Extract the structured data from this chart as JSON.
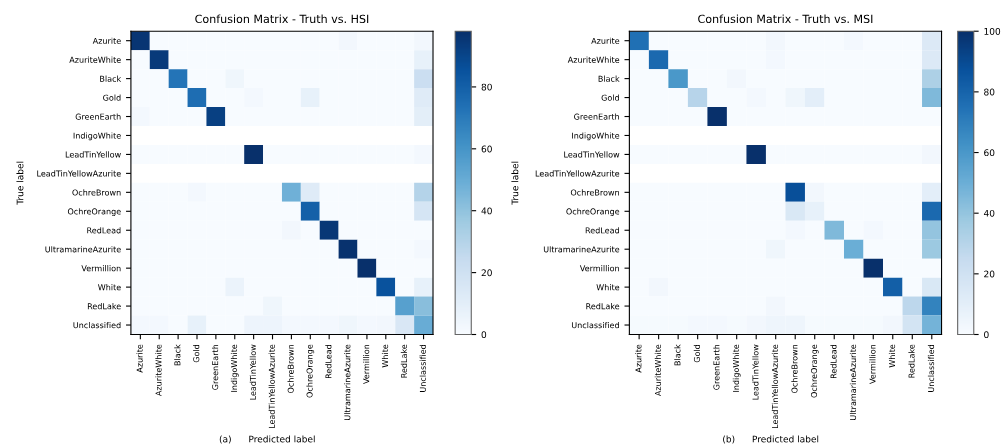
{
  "chart_data": [
    {
      "type": "heatmap",
      "title": "Confusion Matrix - Truth vs. HSI",
      "xlabel": "Predicted label",
      "ylabel": "True label",
      "annotations": [
        "(a)"
      ],
      "categories": [
        "Azurite",
        "AzuriteWhite",
        "Black",
        "Gold",
        "GreenEarth",
        "IndigoWhite",
        "LeadTinYellow",
        "LeadTinYellowAzurite",
        "OchreBrown",
        "OchreOrange",
        "RedLead",
        "UltramarineAzurite",
        "Vermillion",
        "White",
        "RedLake",
        "Unclassified"
      ],
      "y_categories": [
        "Azurite",
        "AzuriteWhite",
        "Black",
        "Gold",
        "GreenEarth",
        "IndigoWhite",
        "LeadTinYellow",
        "LeadTinYellowAzurite",
        "OchreBrown",
        "OchreOrange",
        "RedLead",
        "UltramarineAzurite",
        "Vermillion",
        "White",
        "RedLake",
        "Unclassified"
      ],
      "cells": [
        [
          96,
          0,
          0,
          0,
          0,
          0,
          0,
          0,
          0,
          0,
          0,
          3,
          0,
          0,
          0,
          3
        ],
        [
          0,
          94,
          0,
          0,
          0,
          0,
          0,
          0,
          0,
          0,
          0,
          0,
          0,
          0,
          0,
          8
        ],
        [
          0,
          0,
          72,
          0,
          0,
          4,
          0,
          0,
          0,
          0,
          0,
          0,
          0,
          0,
          0,
          22
        ],
        [
          0,
          0,
          0,
          75,
          0,
          0,
          2,
          0,
          0,
          8,
          0,
          0,
          0,
          0,
          0,
          12
        ],
        [
          2,
          0,
          0,
          0,
          92,
          0,
          0,
          0,
          0,
          0,
          0,
          0,
          0,
          0,
          0,
          10
        ],
        [
          null,
          null,
          null,
          null,
          null,
          null,
          null,
          null,
          null,
          null,
          null,
          null,
          null,
          null,
          null,
          null
        ],
        [
          0,
          0,
          0,
          0,
          0,
          0,
          98,
          0,
          0,
          0,
          0,
          0,
          0,
          0,
          0,
          2
        ],
        [
          null,
          null,
          null,
          null,
          null,
          null,
          null,
          null,
          null,
          null,
          null,
          null,
          null,
          null,
          null,
          null
        ],
        [
          0,
          0,
          0,
          2,
          0,
          0,
          0,
          0,
          48,
          12,
          0,
          0,
          0,
          0,
          0,
          30
        ],
        [
          0,
          0,
          0,
          0,
          0,
          0,
          0,
          0,
          0,
          80,
          0,
          0,
          0,
          0,
          0,
          17
        ],
        [
          0,
          0,
          0,
          0,
          0,
          0,
          0,
          0,
          3,
          0,
          95,
          0,
          0,
          0,
          0,
          0
        ],
        [
          0,
          0,
          0,
          0,
          0,
          0,
          0,
          0,
          0,
          0,
          0,
          97,
          0,
          0,
          0,
          2
        ],
        [
          0,
          0,
          0,
          0,
          0,
          0,
          0,
          0,
          0,
          0,
          0,
          0,
          98,
          0,
          0,
          0
        ],
        [
          0,
          0,
          0,
          0,
          0,
          6,
          0,
          0,
          0,
          0,
          0,
          0,
          0,
          85,
          0,
          8
        ],
        [
          0,
          0,
          0,
          0,
          0,
          0,
          0,
          4,
          0,
          0,
          0,
          0,
          0,
          0,
          55,
          42
        ],
        [
          2,
          2,
          0,
          8,
          0,
          0,
          5,
          5,
          2,
          2,
          2,
          4,
          2,
          3,
          15,
          50
        ]
      ],
      "clim": [
        0,
        98
      ],
      "cticks": [
        0,
        20,
        40,
        60,
        80
      ]
    },
    {
      "type": "heatmap",
      "title": "Confusion Matrix - Truth vs. MSI",
      "xlabel": "Predicted label",
      "ylabel": "True label",
      "annotations": [
        "(b)"
      ],
      "categories": [
        "Azurite",
        "AzuriteWhite",
        "Black",
        "Gold",
        "GreenEarth",
        "IndigoWhite",
        "LeadTinYellow",
        "LeadTinYellowAzurite",
        "OchreBrown",
        "OchreOrange",
        "RedLead",
        "UltramarineAzurite",
        "Vermillion",
        "White",
        "RedLake",
        "Unclassified"
      ],
      "y_categories": [
        "Azurite",
        "AzuriteWhite",
        "Black",
        "Gold",
        "GreenEarth",
        "IndigoWhite",
        "LeadTinYellow",
        "LeadTinYellowAzurite",
        "OchreBrown",
        "OchreOrange",
        "RedLead",
        "UltramarineAzurite",
        "Vermillion",
        "White",
        "RedLake",
        "Unclassified"
      ],
      "cells": [
        [
          75,
          0,
          0,
          0,
          0,
          0,
          0,
          3,
          0,
          0,
          0,
          2,
          0,
          0,
          0,
          14
        ],
        [
          0,
          78,
          0,
          0,
          0,
          0,
          0,
          2,
          0,
          0,
          0,
          0,
          0,
          0,
          0,
          14
        ],
        [
          0,
          0,
          60,
          0,
          0,
          3,
          0,
          0,
          0,
          0,
          0,
          0,
          0,
          0,
          0,
          33
        ],
        [
          0,
          0,
          0,
          30,
          0,
          0,
          2,
          0,
          4,
          10,
          0,
          0,
          0,
          0,
          0,
          45
        ],
        [
          0,
          0,
          0,
          0,
          100,
          0,
          0,
          0,
          0,
          0,
          0,
          0,
          0,
          0,
          0,
          0
        ],
        [
          null,
          null,
          null,
          null,
          null,
          null,
          null,
          null,
          null,
          null,
          null,
          null,
          null,
          null,
          null,
          null
        ],
        [
          0,
          0,
          0,
          0,
          0,
          0,
          100,
          0,
          0,
          0,
          0,
          0,
          0,
          0,
          0,
          3
        ],
        [
          null,
          null,
          null,
          null,
          null,
          null,
          null,
          null,
          null,
          null,
          null,
          null,
          null,
          null,
          null,
          null
        ],
        [
          0,
          0,
          0,
          0,
          0,
          0,
          0,
          0,
          88,
          3,
          0,
          0,
          0,
          0,
          0,
          10
        ],
        [
          0,
          0,
          0,
          0,
          0,
          0,
          0,
          0,
          15,
          8,
          0,
          0,
          0,
          0,
          0,
          78
        ],
        [
          0,
          0,
          0,
          0,
          0,
          0,
          0,
          0,
          2,
          0,
          45,
          0,
          2,
          0,
          0,
          40
        ],
        [
          0,
          0,
          0,
          0,
          0,
          0,
          0,
          4,
          0,
          0,
          0,
          50,
          0,
          0,
          0,
          38
        ],
        [
          0,
          0,
          0,
          0,
          0,
          0,
          0,
          0,
          0,
          0,
          0,
          0,
          100,
          0,
          0,
          0
        ],
        [
          0,
          3,
          0,
          0,
          0,
          0,
          0,
          0,
          0,
          0,
          0,
          0,
          0,
          82,
          0,
          15
        ],
        [
          0,
          0,
          0,
          0,
          0,
          0,
          0,
          3,
          0,
          0,
          0,
          0,
          0,
          0,
          28,
          68
        ],
        [
          1,
          1,
          1,
          2,
          2,
          1,
          3,
          5,
          5,
          1,
          1,
          1,
          1,
          3,
          18,
          48
        ]
      ],
      "clim": [
        0,
        100
      ],
      "cticks": [
        0,
        20,
        40,
        60,
        80,
        100
      ]
    }
  ]
}
